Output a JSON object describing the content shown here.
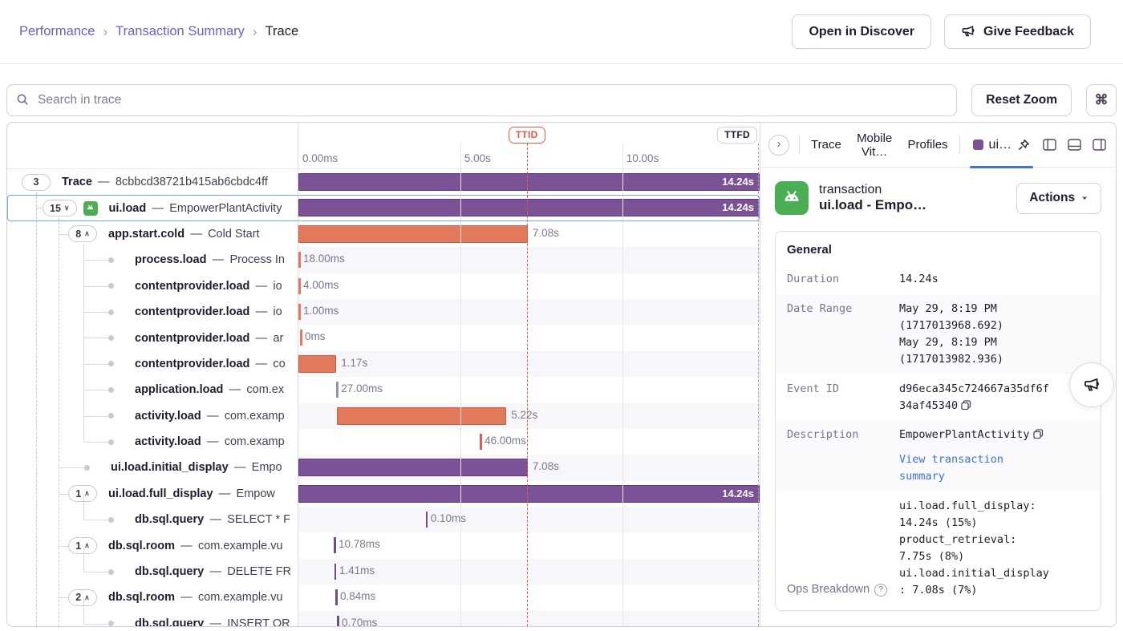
{
  "colors": {
    "accent_purple": "#6e5fc6",
    "bar_purple": "#7a5295",
    "bar_purple_border": "#5d3a72",
    "bar_orange": "#e1795a",
    "bar_orange_border": "#c65f41",
    "tick_purple": "#6d4f85",
    "tick_gray": "#9b91ab",
    "tick_red": "#e8594a",
    "ttid_red": "#e8594a",
    "link_blue": "#3c74db",
    "selected_blue": "#7ba0f5",
    "android_green": "#4cae54"
  },
  "breadcrumb": {
    "separator": "›",
    "items": [
      "Performance",
      "Transaction Summary",
      "Trace"
    ]
  },
  "header": {
    "open_in_discover": "Open in Discover",
    "give_feedback": "Give Feedback"
  },
  "toolbar": {
    "search_placeholder": "Search in trace",
    "reset_zoom": "Reset Zoom",
    "command_key": "⌘"
  },
  "timeline": {
    "total_s": 14.24,
    "ticks": [
      {
        "label": "0.00ms",
        "s": 0
      },
      {
        "label": "5.00s",
        "s": 5
      },
      {
        "label": "10.00s",
        "s": 10
      }
    ],
    "ttid": {
      "label": "TTID",
      "s": 7.05
    },
    "ttfd": {
      "label": "TTFD",
      "s": 14.24
    }
  },
  "spans": [
    {
      "op": "Trace",
      "desc": "8cbbcd38721b415ab6cbdc4ff",
      "level": 0,
      "marker": "pill",
      "count": "3",
      "bar": {
        "start": 0,
        "dur": 14.24,
        "label": "14.24s",
        "style": "purple",
        "inside": true
      }
    },
    {
      "op": "ui.load",
      "desc": "EmpowerPlantActivity",
      "level": 1,
      "marker": "pill",
      "count": "15",
      "chevron": "down",
      "icon": "android",
      "selected": true,
      "bar": {
        "start": 0,
        "dur": 14.24,
        "label": "14.24s",
        "style": "purple",
        "inside": true
      }
    },
    {
      "op": "app.start.cold",
      "desc": "Cold Start",
      "level": 2,
      "marker": "pill",
      "count": "8",
      "chevron": "up",
      "bar": {
        "start": 0,
        "dur": 7.08,
        "label": "7.08s",
        "style": "orange"
      }
    },
    {
      "op": "process.load",
      "desc": "Process In",
      "level": 3,
      "marker": "dot",
      "bar": {
        "tick": true,
        "start": 0,
        "label": "18.00ms",
        "style": "orange"
      }
    },
    {
      "op": "contentprovider.load",
      "desc": "io",
      "level": 3,
      "marker": "dot",
      "bar": {
        "tick": true,
        "start": 0,
        "label": "4.00ms",
        "style": "orange"
      }
    },
    {
      "op": "contentprovider.load",
      "desc": "io",
      "level": 3,
      "marker": "dot",
      "bar": {
        "tick": true,
        "start": 0,
        "label": "1.00ms",
        "style": "orange"
      }
    },
    {
      "op": "contentprovider.load",
      "desc": "ar",
      "level": 3,
      "marker": "dot",
      "bar": {
        "tick": true,
        "start": 0.05,
        "label": "0ms",
        "style": "orange"
      }
    },
    {
      "op": "contentprovider.load",
      "desc": "co",
      "level": 3,
      "marker": "dot",
      "bar": {
        "start": 0,
        "dur": 1.17,
        "label": "1.17s",
        "style": "orange"
      }
    },
    {
      "op": "application.load",
      "desc": "com.ex",
      "level": 3,
      "marker": "dot",
      "bar": {
        "tick": true,
        "start": 1.17,
        "label": "27.00ms",
        "style": "gray"
      }
    },
    {
      "op": "activity.load",
      "desc": "com.examp",
      "level": 3,
      "marker": "dot",
      "bar": {
        "start": 1.2,
        "dur": 5.22,
        "label": "5.22s",
        "style": "orange"
      }
    },
    {
      "op": "activity.load",
      "desc": "com.examp",
      "level": 3,
      "marker": "dot",
      "bar": {
        "tick": true,
        "start": 5.6,
        "label": "46.00ms",
        "style": "red"
      }
    },
    {
      "op": "ui.load.initial_display",
      "desc": "Empo",
      "level": 2,
      "marker": "dot",
      "bar": {
        "start": 0,
        "dur": 7.08,
        "label": "7.08s",
        "style": "purple"
      }
    },
    {
      "op": "ui.load.full_display",
      "desc": "Empow",
      "level": 2,
      "marker": "pill",
      "count": "1",
      "chevron": "up",
      "bar": {
        "start": 0,
        "dur": 14.24,
        "label": "14.24s",
        "style": "purple",
        "inside": true
      }
    },
    {
      "op": "db.sql.query",
      "desc": "SELECT * F",
      "level": 3,
      "marker": "dot",
      "elbow": true,
      "bar": {
        "tick": true,
        "start": 3.93,
        "label": "0.10ms",
        "style": "tickpurple"
      }
    },
    {
      "op": "db.sql.room",
      "desc": "com.example.vu",
      "level": 2,
      "marker": "pill",
      "count": "1",
      "chevron": "up",
      "bar": {
        "tick": true,
        "start": 1.09,
        "label": "10.78ms",
        "style": "tickpurple"
      }
    },
    {
      "op": "db.sql.query",
      "desc": "DELETE FR",
      "level": 3,
      "marker": "dot",
      "elbow": true,
      "bar": {
        "tick": true,
        "start": 1.11,
        "label": "1.41ms",
        "style": "tickpurple"
      }
    },
    {
      "op": "db.sql.room",
      "desc": "com.example.vu",
      "level": 2,
      "marker": "pill",
      "count": "2",
      "chevron": "up",
      "bar": {
        "tick": true,
        "start": 1.14,
        "label": "0.84ms",
        "style": "tickpurple"
      }
    },
    {
      "op": "db.sql.query",
      "desc": "INSERT OR",
      "level": 3,
      "marker": "dot",
      "elbow": true,
      "bar": {
        "tick": true,
        "start": 1.19,
        "label": "0.70ms",
        "style": "tickpurple"
      }
    }
  ],
  "panel": {
    "tabs": [
      "Trace",
      "Mobile Vit…",
      "Profiles"
    ],
    "active_tab": "ui…",
    "transaction": {
      "kind": "transaction",
      "title": "ui.load - EmpowerPlantActivity",
      "actions": "Actions"
    },
    "general": {
      "heading": "General",
      "duration_label": "Duration",
      "duration_value": "14.24s",
      "date_range_label": "Date Range",
      "date_range_lines": [
        "May 29, 8:19 PM",
        "(1717013968.692)",
        "May 29, 8:19 PM",
        "(1717013982.936)"
      ],
      "event_id_label": "Event ID",
      "event_id_value": "d96eca345c724667a35df6f34af45340",
      "description_label": "Description",
      "description_value": "EmpowerPlantActivity",
      "view_link": "View transaction summary",
      "ops_label": "Ops Breakdown",
      "ops_entries": [
        "ui.load.full_display: 14.24s (15%)",
        "product_retrieval: 7.75s (8%)",
        "ui.load.initial_display: 7.08s (7%)"
      ]
    }
  }
}
